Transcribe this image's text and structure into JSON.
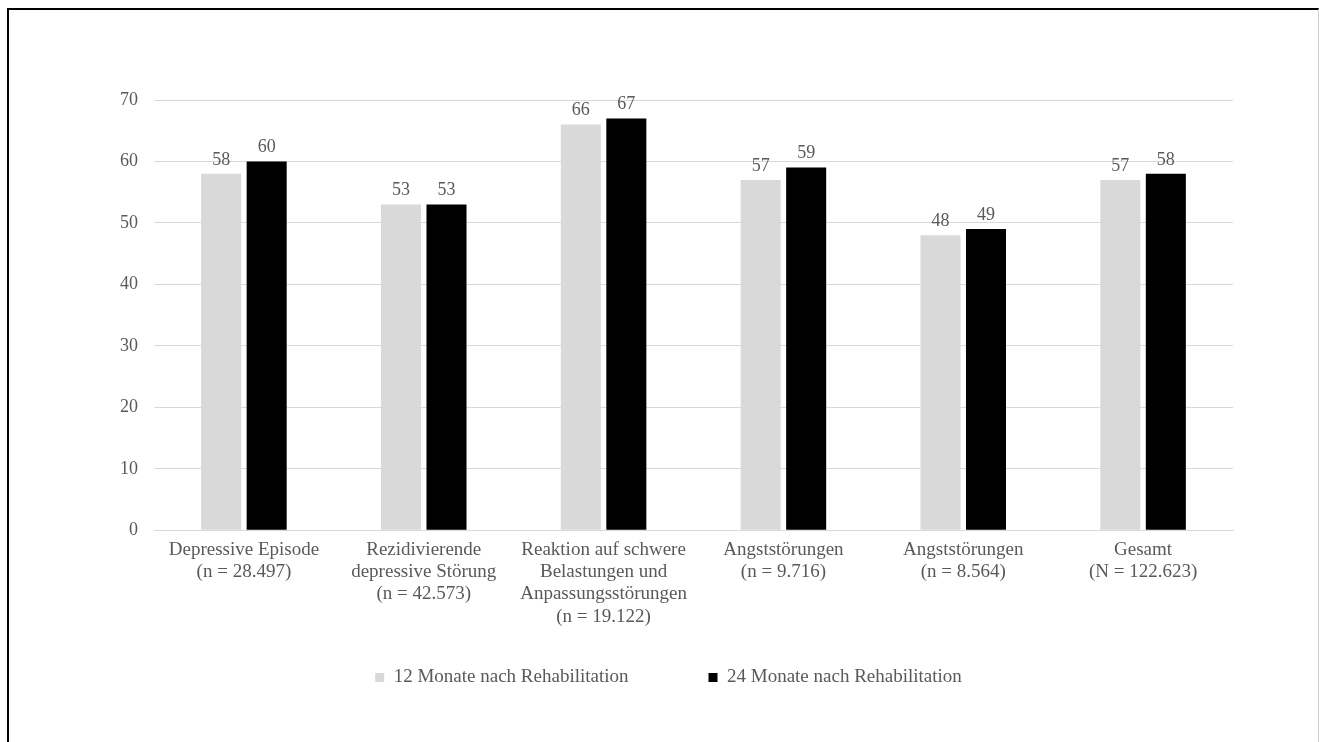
{
  "chart_data": {
    "type": "bar",
    "categories": [
      "Depressive Episode\n(n = 28.497)",
      "Rezidivierende\ndepressive Störung\n(n = 42.573)",
      "Reaktion auf schwere\nBelastungen und\nAnpassungsstörungen\n(n = 19.122)",
      "Angststörungen\n(n = 9.716)",
      "Angststörungen\n(n = 8.564)",
      "Gesamt\n(N = 122.623)"
    ],
    "series": [
      {
        "name": "12 Monate nach Rehabilitation",
        "color": "#d9d9d9",
        "values": [
          58,
          53,
          66,
          57,
          48,
          57
        ]
      },
      {
        "name": "24 Monate nach Rehabilitation",
        "color": "#000000",
        "values": [
          60,
          53,
          67,
          59,
          49,
          58
        ]
      }
    ],
    "ylim": [
      0,
      70
    ],
    "yticks": [
      0,
      10,
      20,
      30,
      40,
      50,
      60,
      70
    ],
    "grid": "y",
    "legend": "bottom",
    "data_labels": true
  }
}
